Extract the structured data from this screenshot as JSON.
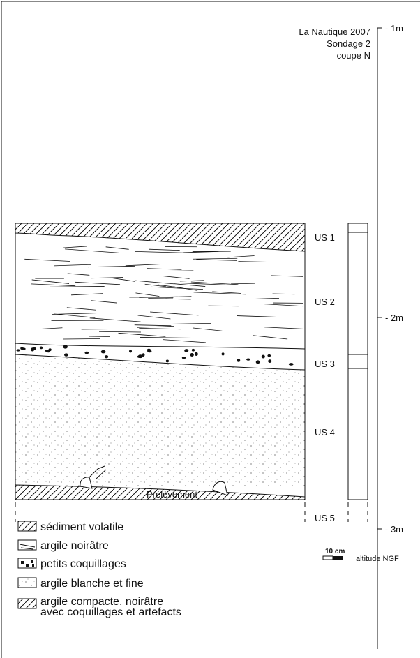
{
  "header": {
    "lines": [
      "La Nautique 2007",
      "Sondage 2",
      "coupe N"
    ]
  },
  "units": [
    "US 1",
    "US 2",
    "US 3",
    "US 4",
    "US 5"
  ],
  "scale_labels": [
    "- 1m",
    "- 2m",
    "- 3m"
  ],
  "annotation": "Prélèvement",
  "legend": [
    {
      "lines": [
        "sédiment volatile"
      ]
    },
    {
      "lines": [
        "argile noirâtre"
      ]
    },
    {
      "lines": [
        "petits coquillages"
      ]
    },
    {
      "lines": [
        "argile blanche et fine"
      ]
    },
    {
      "lines": [
        "argile compacte, noirâtre",
        "avec coquillages et artefacts"
      ]
    }
  ],
  "scale_bar": {
    "label": "10 cm",
    "unit": "altitude NGF"
  }
}
